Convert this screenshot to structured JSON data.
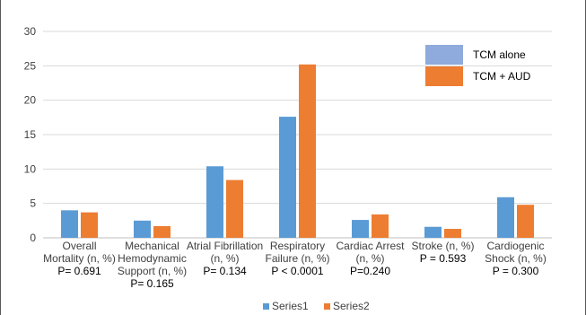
{
  "chart_data": {
    "type": "bar",
    "title": "",
    "xlabel": "",
    "ylabel": "",
    "ylim": [
      0,
      30
    ],
    "yticks": [
      0,
      5,
      10,
      15,
      20,
      25,
      30
    ],
    "grid": true,
    "categories": [
      {
        "lines": [
          "Overall",
          "Mortality (n, %)"
        ],
        "p": "P= 0.691"
      },
      {
        "lines": [
          "Mechanical",
          "Hemodynamic",
          "Support (n, %)"
        ],
        "p": "P= 0.165"
      },
      {
        "lines": [
          "Atrial Fibrillation",
          "(n, %)"
        ],
        "p": "P= 0.134"
      },
      {
        "lines": [
          "Respiratory",
          "Failure (n, %)"
        ],
        "p": "P < 0.0001"
      },
      {
        "lines": [
          "Cardiac Arrest",
          "(n, %)"
        ],
        "p": "P=0.240"
      },
      {
        "lines": [
          "Stroke (n, %)"
        ],
        "p": "P = 0.593"
      },
      {
        "lines": [
          "Cardiogenic",
          "Shock (n, %)"
        ],
        "p": "P = 0.300"
      }
    ],
    "series": [
      {
        "name": "Series1",
        "legend_label": "TCM alone",
        "color": "#5b9bd5",
        "values": [
          4.0,
          2.5,
          10.4,
          17.6,
          2.6,
          1.6,
          5.9
        ]
      },
      {
        "name": "Series2",
        "legend_label": "TCM + AUD",
        "color": "#ed7d31",
        "values": [
          3.7,
          1.7,
          8.4,
          25.2,
          3.4,
          1.3,
          4.8
        ]
      }
    ],
    "legend_top": {
      "placement": "top-right",
      "swatch_colors": [
        "#8faadc",
        "#ed7d31"
      ]
    },
    "legend_bottom": {
      "placement": "bottom"
    }
  }
}
